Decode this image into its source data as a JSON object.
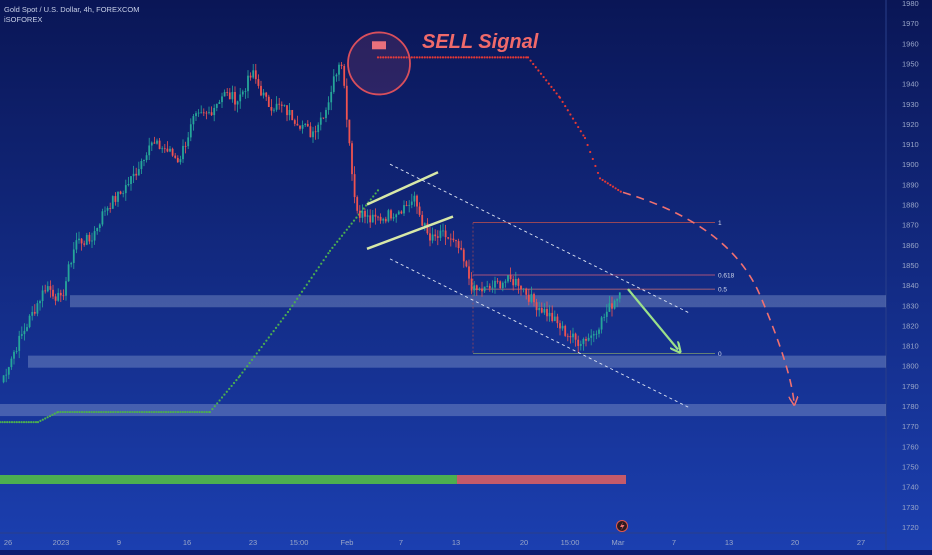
{
  "header": {
    "line1": "Gold Spot / U.S. Dollar, 4h, FOREXCOM",
    "line2": "iSOFOREX"
  },
  "annotations": {
    "sell_signal": "SELL Signal"
  },
  "fib_labels": [
    "1",
    "0.618",
    "0.5",
    "0"
  ],
  "y_axis_ticks": [
    1980,
    1970,
    1960,
    1950,
    1940,
    1930,
    1920,
    1910,
    1900,
    1890,
    1880,
    1870,
    1860,
    1850,
    1840,
    1830,
    1820,
    1810,
    1800,
    1790,
    1780,
    1770,
    1760,
    1750,
    1740,
    1730,
    1720
  ],
  "x_axis_ticks": [
    "26",
    "2023",
    "9",
    "16",
    "23",
    "15:00",
    "Feb",
    "7",
    "13",
    "20",
    "15:00",
    "Mar",
    "7",
    "13",
    "20",
    "27"
  ],
  "colors": {
    "background_top": "#0b1a5e",
    "background_bottom": "#1a3fae",
    "bull": "#26a69a",
    "bear": "#ef5350",
    "trail_up": "#4caf50",
    "trail_down": "#e53935",
    "channel": "#d7e8a8",
    "zone": "#9fb2d9",
    "projection": "#f07070",
    "arrow": "#9be08a"
  },
  "chart_data": {
    "type": "candlestick",
    "title": "Gold Spot / U.S. Dollar, 4h, FOREXCOM",
    "ylim": [
      1715,
      1985
    ],
    "y_axis_side": "right",
    "close_path": [
      {
        "x": "Dec 26",
        "y": 1793
      },
      {
        "x": "Dec 28",
        "y": 1810
      },
      {
        "x": "Jan 2",
        "y": 1825
      },
      {
        "x": "Jan 4",
        "y": 1840
      },
      {
        "x": "Jan 5",
        "y": 1832
      },
      {
        "x": "Jan 6",
        "y": 1862
      },
      {
        "x": "Jan 9",
        "y": 1862
      },
      {
        "x": "Jan 10",
        "y": 1878
      },
      {
        "x": "Jan 12",
        "y": 1885
      },
      {
        "x": "Jan 13",
        "y": 1895
      },
      {
        "x": "Jan 16",
        "y": 1910
      },
      {
        "x": "Jan 17",
        "y": 1908
      },
      {
        "x": "Jan 18",
        "y": 1902
      },
      {
        "x": "Jan 19",
        "y": 1922
      },
      {
        "x": "Jan 20",
        "y": 1925
      },
      {
        "x": "Jan 23",
        "y": 1935
      },
      {
        "x": "Jan 24",
        "y": 1932
      },
      {
        "x": "Jan 25",
        "y": 1945
      },
      {
        "x": "Jan 26",
        "y": 1930
      },
      {
        "x": "Jan 27",
        "y": 1928
      },
      {
        "x": "Jan 30",
        "y": 1922
      },
      {
        "x": "Jan 31",
        "y": 1915
      },
      {
        "x": "Feb 1",
        "y": 1928
      },
      {
        "x": "Feb 2",
        "y": 1955
      },
      {
        "x": "Feb 3",
        "y": 1878
      },
      {
        "x": "Feb 6",
        "y": 1872
      },
      {
        "x": "Feb 7",
        "y": 1874
      },
      {
        "x": "Feb 8",
        "y": 1878
      },
      {
        "x": "Feb 9",
        "y": 1882
      },
      {
        "x": "Feb 10",
        "y": 1862
      },
      {
        "x": "Feb 13",
        "y": 1865
      },
      {
        "x": "Feb 14",
        "y": 1858
      },
      {
        "x": "Feb 15",
        "y": 1837
      },
      {
        "x": "Feb 16",
        "y": 1838
      },
      {
        "x": "Feb 17",
        "y": 1842
      },
      {
        "x": "Feb 20",
        "y": 1842
      },
      {
        "x": "Feb 21",
        "y": 1832
      },
      {
        "x": "Feb 22",
        "y": 1826
      },
      {
        "x": "Feb 23",
        "y": 1818
      },
      {
        "x": "Feb 24",
        "y": 1812
      },
      {
        "x": "Feb 27",
        "y": 1815
      },
      {
        "x": "Feb 28",
        "y": 1826
      },
      {
        "x": "Mar 1",
        "y": 1838
      }
    ],
    "support_zones": [
      {
        "from": 1829,
        "to": 1835
      },
      {
        "from": 1799,
        "to": 1805
      },
      {
        "from": 1775,
        "to": 1781
      }
    ],
    "fib_levels": [
      {
        "label": "1",
        "value": 1871
      },
      {
        "label": "0.618",
        "value": 1845
      },
      {
        "label": "0.5",
        "value": 1838
      },
      {
        "label": "0",
        "value": 1806
      }
    ],
    "signal": {
      "type": "sell",
      "price": 1955,
      "label": "SELL Signal"
    },
    "projection_target": 1780,
    "progress_bar": {
      "bull_fraction": 0.73
    }
  }
}
